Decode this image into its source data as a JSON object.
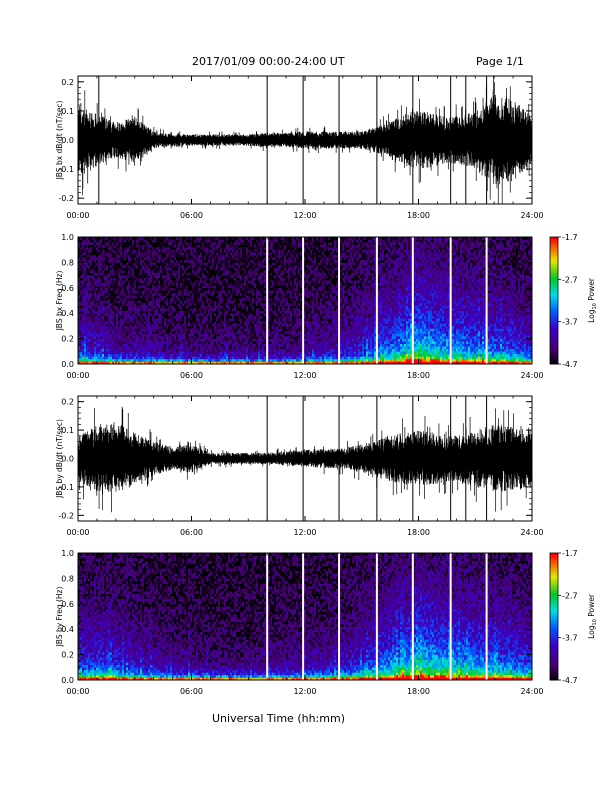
{
  "header": {
    "date_range": "2017/01/09   00:00-24:00 UT",
    "page": "Page 1/1"
  },
  "xlabel": "Universal Time (hh:mm)",
  "time_ticks": [
    "00:00",
    "06:00",
    "12:00",
    "18:00",
    "24:00"
  ],
  "colorbar": {
    "label": "Log10 Power",
    "ticks": [
      "-1.7",
      "-2.7",
      "-3.7",
      "-4.7"
    ],
    "range": [
      -4.7,
      -1.7
    ]
  },
  "chart_data": [
    {
      "type": "line",
      "ylabel": "JBS bx dB/dt (nT/sec)",
      "yticks": [
        "0.2",
        "0.1",
        "0.0",
        "-0.1",
        "-0.2"
      ],
      "ylim": [
        -0.22,
        0.22
      ],
      "xlim_hours": [
        0,
        24
      ],
      "envelope": {
        "hours": [
          0,
          1,
          2,
          3,
          4,
          5,
          6,
          7,
          8,
          9,
          10,
          11,
          12,
          13,
          14,
          15,
          16,
          17,
          18,
          19,
          20,
          21,
          22,
          23,
          24
        ],
        "amplitude": [
          0.14,
          0.09,
          0.06,
          0.08,
          0.03,
          0.02,
          0.02,
          0.02,
          0.02,
          0.02,
          0.025,
          0.025,
          0.03,
          0.03,
          0.03,
          0.03,
          0.05,
          0.08,
          0.1,
          0.09,
          0.08,
          0.1,
          0.16,
          0.14,
          0.08
        ]
      },
      "spikes_hours": [
        10.0,
        11.9,
        13.8,
        15.8,
        17.7,
        19.7,
        20.5,
        21.6,
        1.1
      ]
    },
    {
      "type": "heatmap",
      "ylabel": "JBS bx Freq (Hz)",
      "yticks": [
        "1.0",
        "0.8",
        "0.6",
        "0.4",
        "0.2",
        "0.0"
      ],
      "ylim": [
        0,
        1.0
      ],
      "xlim_hours": [
        0,
        24
      ],
      "white_lines_hours": [
        10.0,
        11.9,
        13.8,
        15.8,
        17.7,
        19.7,
        21.6
      ],
      "activity_by_hour": [
        0.45,
        0.4,
        0.3,
        0.25,
        0.25,
        0.15,
        0.15,
        0.15,
        0.15,
        0.15,
        0.2,
        0.2,
        0.25,
        0.3,
        0.35,
        0.45,
        0.6,
        0.7,
        0.85,
        0.75,
        0.7,
        0.65,
        0.6,
        0.55,
        0.45
      ]
    },
    {
      "type": "line",
      "ylabel": "JBS by dB/dt (nT/sec)",
      "yticks": [
        "0.2",
        "0.1",
        "0.0",
        "-0.1",
        "-0.2"
      ],
      "ylim": [
        -0.22,
        0.22
      ],
      "xlim_hours": [
        0,
        24
      ],
      "envelope": {
        "hours": [
          0,
          1,
          2,
          3,
          4,
          5,
          6,
          7,
          8,
          9,
          10,
          11,
          12,
          13,
          14,
          15,
          16,
          17,
          18,
          19,
          20,
          21,
          22,
          23,
          24
        ],
        "amplitude": [
          0.08,
          0.12,
          0.13,
          0.09,
          0.06,
          0.04,
          0.05,
          0.02,
          0.02,
          0.02,
          0.02,
          0.025,
          0.03,
          0.035,
          0.035,
          0.05,
          0.07,
          0.09,
          0.1,
          0.09,
          0.08,
          0.1,
          0.12,
          0.11,
          0.1
        ]
      },
      "spikes_hours": [
        10.0,
        11.9,
        13.8,
        15.8,
        17.7,
        19.7,
        20.5,
        21.6
      ]
    },
    {
      "type": "heatmap",
      "ylabel": "JBS by Freq (Hz)",
      "yticks": [
        "1.0",
        "0.8",
        "0.6",
        "0.4",
        "0.2",
        "0.0"
      ],
      "ylim": [
        0,
        1.0
      ],
      "xlim_hours": [
        0,
        24
      ],
      "white_lines_hours": [
        10.0,
        11.9,
        13.8,
        15.8,
        17.7,
        19.7,
        21.6
      ],
      "activity_by_hour": [
        0.5,
        0.55,
        0.5,
        0.4,
        0.35,
        0.25,
        0.25,
        0.2,
        0.2,
        0.2,
        0.25,
        0.25,
        0.3,
        0.35,
        0.4,
        0.5,
        0.65,
        0.75,
        0.85,
        0.8,
        0.75,
        0.7,
        0.65,
        0.6,
        0.55
      ]
    }
  ]
}
